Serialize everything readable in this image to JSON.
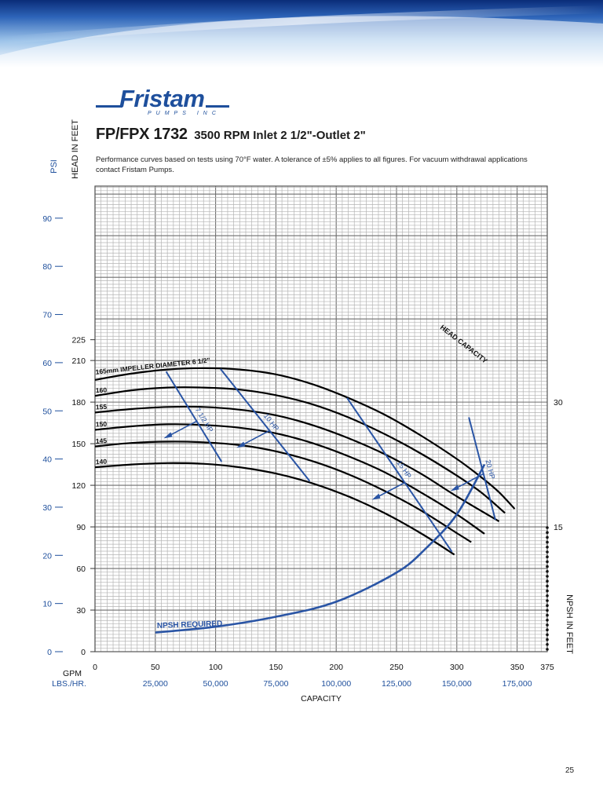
{
  "header": {
    "logo_text": "Fristam",
    "logo_subtext": "PUMPS INC",
    "model": "FP/FPX 1732",
    "spec": "3500 RPM Inlet 2 1/2\"-Outlet 2\"",
    "description_lines": [
      "Performance curves based on tests using 70°F water.  A tolerance of ±5% applies to all figures. For vacuum withdrawal applications",
      "contact Fristam Pumps."
    ]
  },
  "page_number": "25",
  "colors": {
    "banner_dark": "#0b2f7e",
    "banner_light": "#eaf3fb",
    "brand_blue": "#1e4f9c",
    "grid_minor": "#b4b4b4",
    "grid_major": "#6e6e6e",
    "curve": "#000000",
    "power_line": "#2a55a5"
  },
  "chart_data": {
    "type": "line",
    "axes": {
      "x_label": "CAPACITY",
      "x_unit_label": "GPM",
      "x_ticks": [
        0,
        50,
        100,
        150,
        200,
        250,
        300,
        350,
        375
      ],
      "x_range": [
        0,
        375
      ],
      "x_secondary_label": "LBS./HR.",
      "x_secondary_ticks": [
        {
          "gpm": 50,
          "label": "25,000"
        },
        {
          "gpm": 100,
          "label": "50,000"
        },
        {
          "gpm": 150,
          "label": "75,000"
        },
        {
          "gpm": 200,
          "label": "100,000"
        },
        {
          "gpm": 250,
          "label": "125,000"
        },
        {
          "gpm": 300,
          "label": "150,000"
        },
        {
          "gpm": 350,
          "label": "175,000"
        }
      ],
      "head_label": "HEAD IN FEET",
      "head_ticks": [
        0,
        30,
        60,
        90,
        120,
        150,
        180,
        210,
        225
      ],
      "psi_label": "PSI",
      "psi_ticks": [
        0,
        10,
        20,
        30,
        40,
        50,
        60,
        70,
        80,
        90
      ],
      "npsh_label": "NPSH IN FEET",
      "npsh_ticks": [
        15,
        30
      ],
      "grid": true
    },
    "head_curves": [
      {
        "label": "165mm IMPELLER DIAMETER 6 1/2\"",
        "x": [
          0,
          30,
          60,
          90,
          120,
          150,
          180,
          210,
          240,
          270,
          300,
          320,
          335,
          348
        ],
        "y": [
          196,
          200.5,
          203.5,
          204.5,
          203.5,
          200,
          193,
          183,
          171,
          156,
          139,
          126,
          115,
          103
        ]
      },
      {
        "label": "160",
        "x": [
          0,
          30,
          60,
          90,
          120,
          150,
          180,
          210,
          240,
          270,
          300,
          320,
          340
        ],
        "y": [
          184.5,
          188.5,
          190.5,
          190.5,
          189,
          185,
          178.5,
          169,
          157,
          143,
          127,
          115,
          100
        ]
      },
      {
        "label": "155",
        "x": [
          0,
          30,
          60,
          90,
          120,
          150,
          180,
          210,
          240,
          270,
          300,
          335
        ],
        "y": [
          172.5,
          175,
          176.5,
          176.5,
          174.5,
          170.5,
          163.5,
          154,
          142.5,
          128.5,
          112,
          94
        ]
      },
      {
        "label": "150",
        "x": [
          0,
          30,
          60,
          90,
          120,
          150,
          180,
          210,
          240,
          270,
          300,
          323
        ],
        "y": [
          160,
          162.5,
          164,
          163.5,
          161.5,
          157.5,
          150.5,
          141,
          129.5,
          115,
          99,
          85
        ]
      },
      {
        "label": "145",
        "x": [
          0,
          30,
          60,
          90,
          120,
          150,
          180,
          210,
          240,
          270,
          300,
          312
        ],
        "y": [
          148,
          150.5,
          151.5,
          151,
          149,
          144.5,
          137.5,
          128,
          116,
          102,
          85.5,
          79
        ]
      },
      {
        "label": "140",
        "x": [
          0,
          30,
          60,
          90,
          120,
          150,
          180,
          210,
          240,
          270,
          298
        ],
        "y": [
          133,
          135,
          136,
          135.5,
          133,
          128.5,
          121.5,
          112,
          100,
          85.5,
          70
        ]
      }
    ],
    "power_lines": [
      {
        "label": "7 1/2 HP",
        "x": [
          59,
          105
        ],
        "y": [
          202,
          137
        ]
      },
      {
        "label": "10 HP",
        "x": [
          104,
          178
        ],
        "y": [
          204,
          123
        ]
      },
      {
        "label": "15 HP",
        "x": [
          209,
          296
        ],
        "y": [
          183,
          72
        ]
      },
      {
        "label": "20 HP",
        "x": [
          310,
          332
        ],
        "y": [
          169,
          95
        ]
      }
    ],
    "curve_labels": {
      "head_capacity": "HEAD CAPACITY"
    },
    "npsh_curve": {
      "label": "NPSH REQUIRED",
      "x": [
        50,
        100,
        150,
        200,
        250,
        275,
        300,
        323
      ],
      "y": [
        2.3,
        3.0,
        4.2,
        6.0,
        9.5,
        12.5,
        16.5,
        22.5
      ]
    }
  }
}
